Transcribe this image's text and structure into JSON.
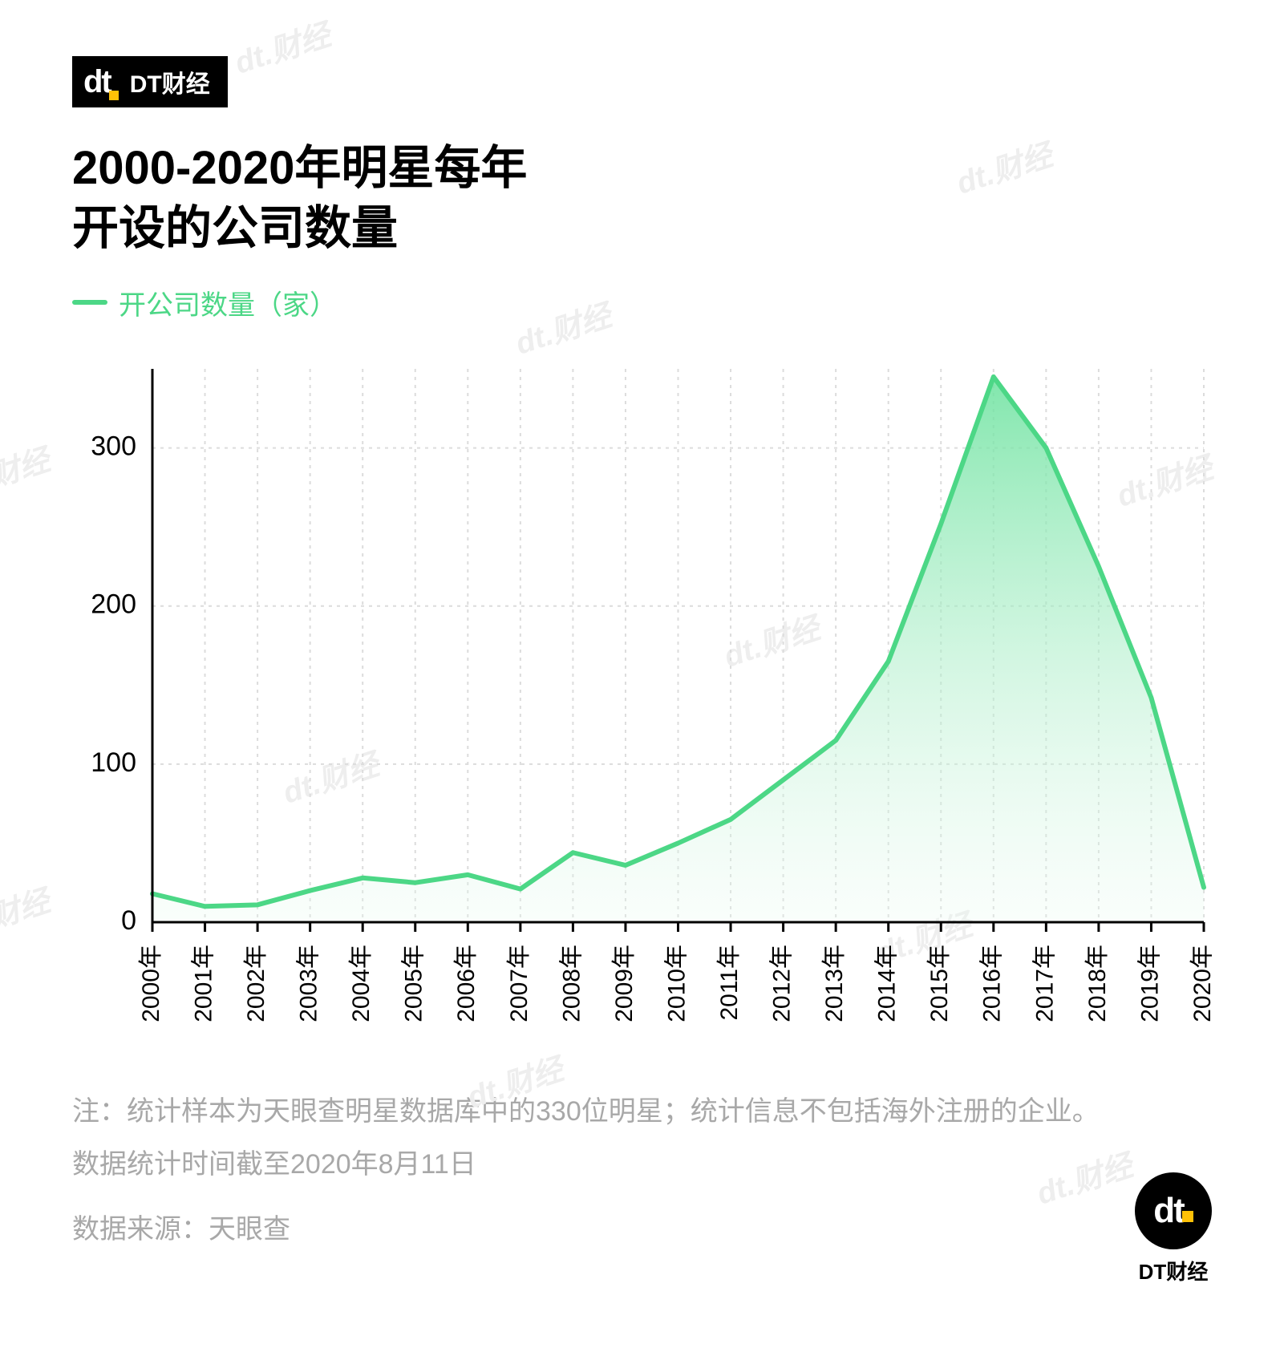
{
  "header": {
    "logo_text": "dt",
    "logo_label": "DT财经"
  },
  "title_line1": "2000-2020年明星每年",
  "title_line2": "开设的公司数量",
  "legend_label": "开公司数量（家）",
  "chart": {
    "type": "area-line",
    "line_color": "#4cd786",
    "line_width": 6,
    "fill_top_color": "#6be29e",
    "fill_bottom_color": "#e9faf0",
    "background_color": "#ffffff",
    "grid_color": "#dcdcdc",
    "axis_color": "#000000",
    "axis_width": 3,
    "ylim": [
      0,
      350
    ],
    "yticks": [
      0,
      100,
      200,
      300
    ],
    "xlabels": [
      "2000年",
      "2001年",
      "2002年",
      "2003年",
      "2004年",
      "2005年",
      "2006年",
      "2007年",
      "2008年",
      "2009年",
      "2010年",
      "2011年",
      "2012年",
      "2013年",
      "2014年",
      "2015年",
      "2016年",
      "2017年",
      "2018年",
      "2019年",
      "2020年"
    ],
    "values": [
      18,
      10,
      11,
      20,
      28,
      25,
      30,
      21,
      44,
      36,
      50,
      65,
      90,
      115,
      165,
      252,
      345,
      300,
      225,
      142,
      22
    ],
    "tick_fontsize": 34,
    "xlabel_fontsize": 30
  },
  "footnote": {
    "note": "注：统计样本为天眼查明星数据库中的330位明星；统计信息不包括海外注册的企业。",
    "date": "数据统计时间截至2020年8月11日",
    "source": "数据来源：天眼查"
  },
  "footer_logo_label": "DT财经",
  "watermark_text": "dt.财经"
}
